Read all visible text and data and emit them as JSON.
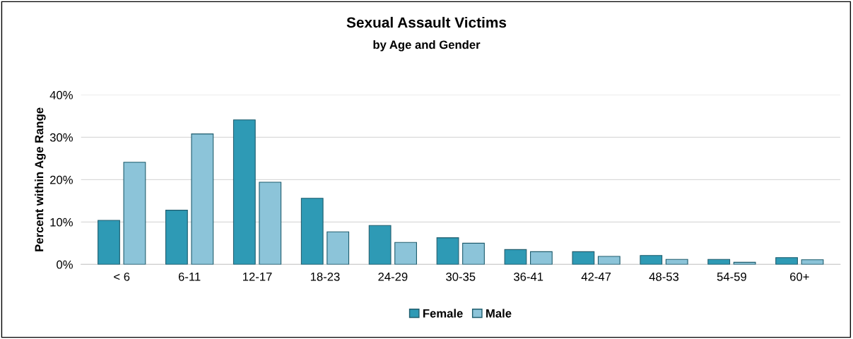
{
  "chart_data": {
    "type": "bar",
    "title": "Sexual Assault Victims",
    "subtitle": "by Age and Gender",
    "ylabel": "Percent within Age Range",
    "categories": [
      "< 6",
      "6-11",
      "12-17",
      "18-23",
      "24-29",
      "30-35",
      "36-41",
      "42-47",
      "48-53",
      "54-59",
      "60+"
    ],
    "series": [
      {
        "name": "Female",
        "color": "#2e9ab5",
        "values": [
          10.4,
          12.8,
          34.1,
          15.6,
          9.2,
          6.3,
          3.5,
          3.0,
          2.1,
          1.2,
          1.6
        ]
      },
      {
        "name": "Male",
        "color": "#8cc4d9",
        "values": [
          24.1,
          30.8,
          19.4,
          7.7,
          5.2,
          5.0,
          3.0,
          1.9,
          1.2,
          0.5,
          1.1
        ]
      }
    ],
    "ylim": [
      0,
      40
    ],
    "yticks": [
      {
        "value": 0,
        "label": "0%"
      },
      {
        "value": 10,
        "label": "10%"
      },
      {
        "value": 20,
        "label": "20%"
      },
      {
        "value": 30,
        "label": "30%"
      },
      {
        "value": 40,
        "label": "40%"
      }
    ],
    "grid": "y",
    "legend": "bottom"
  }
}
